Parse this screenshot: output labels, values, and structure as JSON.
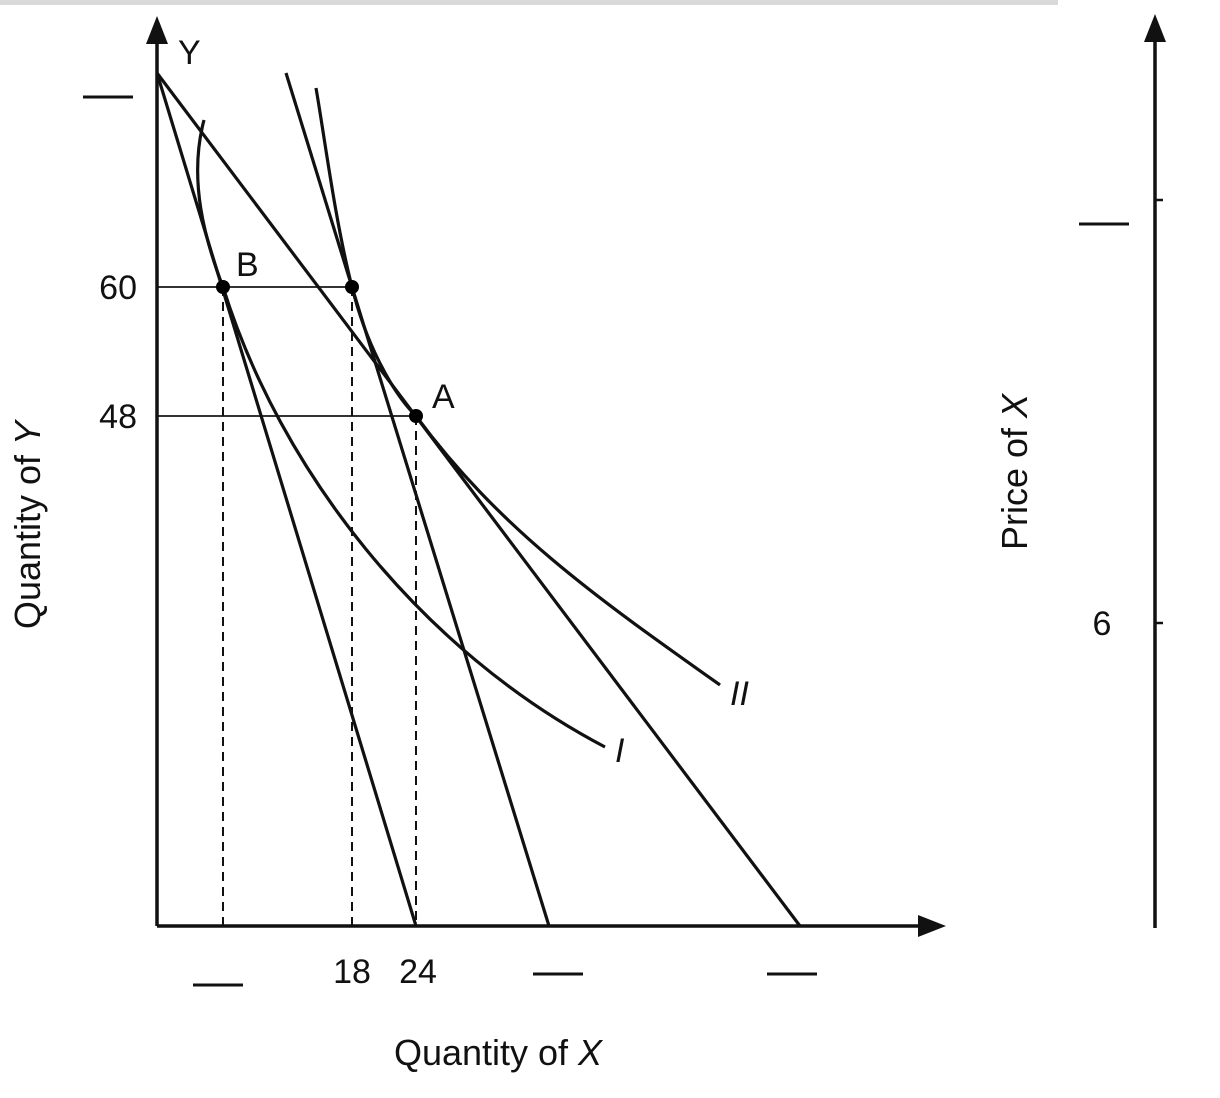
{
  "chart_data": [
    {
      "type": "line",
      "title": "",
      "y_axis_letter": "Y",
      "ylabel_prefix": "Quantity of ",
      "ylabel_var": "Y",
      "xlabel_prefix": "Quantity of ",
      "xlabel_var": "X",
      "y_ticks": [
        "60",
        "48"
      ],
      "x_ticks": [
        "18",
        "24"
      ],
      "points": [
        {
          "label": "B",
          "x": 5,
          "y": 60
        },
        {
          "label": "",
          "x": 18,
          "y": 60
        },
        {
          "label": "A",
          "x": 24,
          "y": 48
        }
      ],
      "indifference_curves": [
        {
          "name": "I"
        },
        {
          "name": "II"
        }
      ],
      "budget_lines": 3,
      "blank_answer_boxes": 4
    },
    {
      "type": "line",
      "ylabel_prefix": "Price of ",
      "ylabel_var": "X",
      "y_ticks": [
        "6"
      ],
      "blank_answer_boxes": 1
    }
  ],
  "colors": {
    "ink": "#111111",
    "background": "#ffffff"
  }
}
